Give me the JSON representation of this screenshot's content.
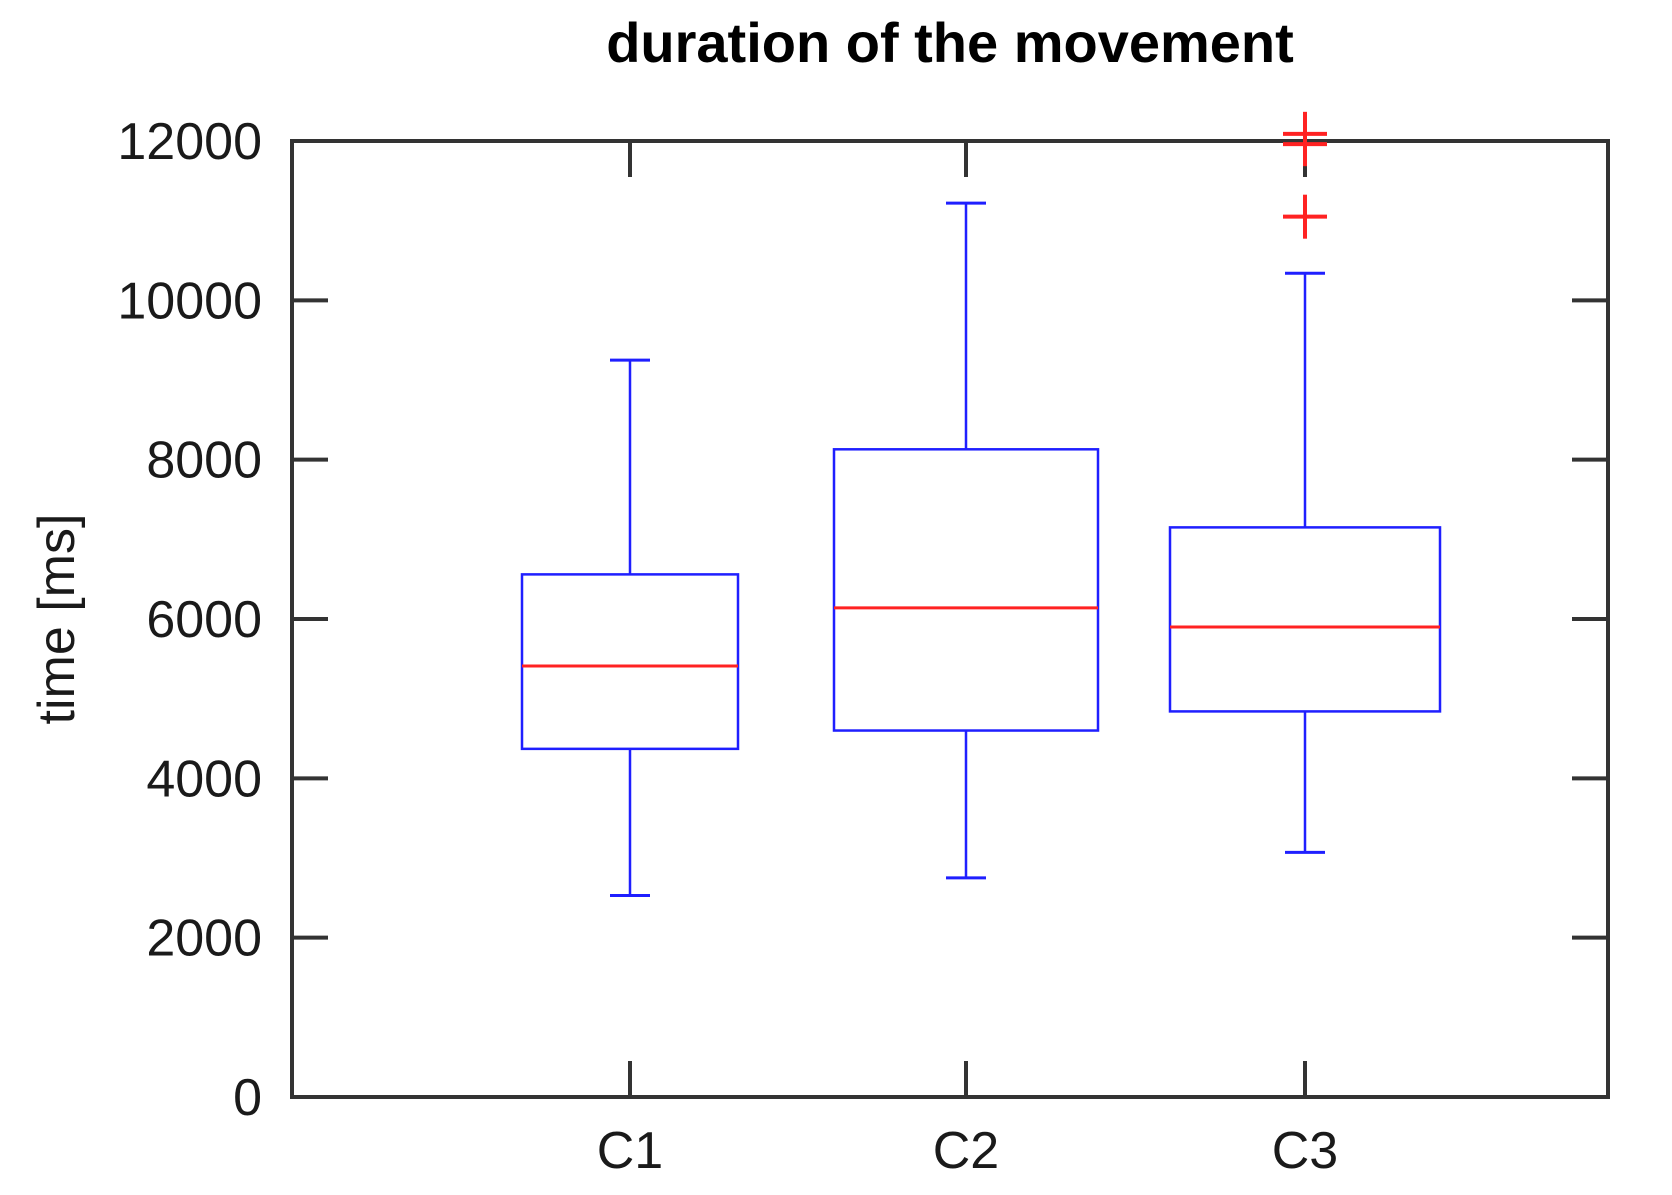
{
  "title": "duration of the movement",
  "ylabel": "time [ms]",
  "chart_data": {
    "type": "boxplot",
    "categories": [
      "C1",
      "C2",
      "C3"
    ],
    "ylim": [
      0,
      12000
    ],
    "yticks": [
      0,
      2000,
      4000,
      6000,
      8000,
      10000,
      12000
    ],
    "grid": false,
    "legend": null,
    "series": [
      {
        "name": "C1",
        "whisker_low": 2530,
        "q1": 4370,
        "median": 5410,
        "q3": 6560,
        "whisker_high": 9250,
        "outliers": []
      },
      {
        "name": "C2",
        "whisker_low": 2750,
        "q1": 4600,
        "median": 6140,
        "q3": 8130,
        "whisker_high": 11220,
        "outliers": []
      },
      {
        "name": "C3",
        "whisker_low": 3070,
        "q1": 4840,
        "median": 5900,
        "q3": 7150,
        "whisker_high": 10340,
        "outliers": [
          11050,
          11960,
          12090
        ]
      }
    ],
    "colors": {
      "box": "#1f1fff",
      "median": "#ff2222",
      "outlier": "#ff2222",
      "axis": "#333333",
      "text": "#1a1a1a"
    }
  }
}
